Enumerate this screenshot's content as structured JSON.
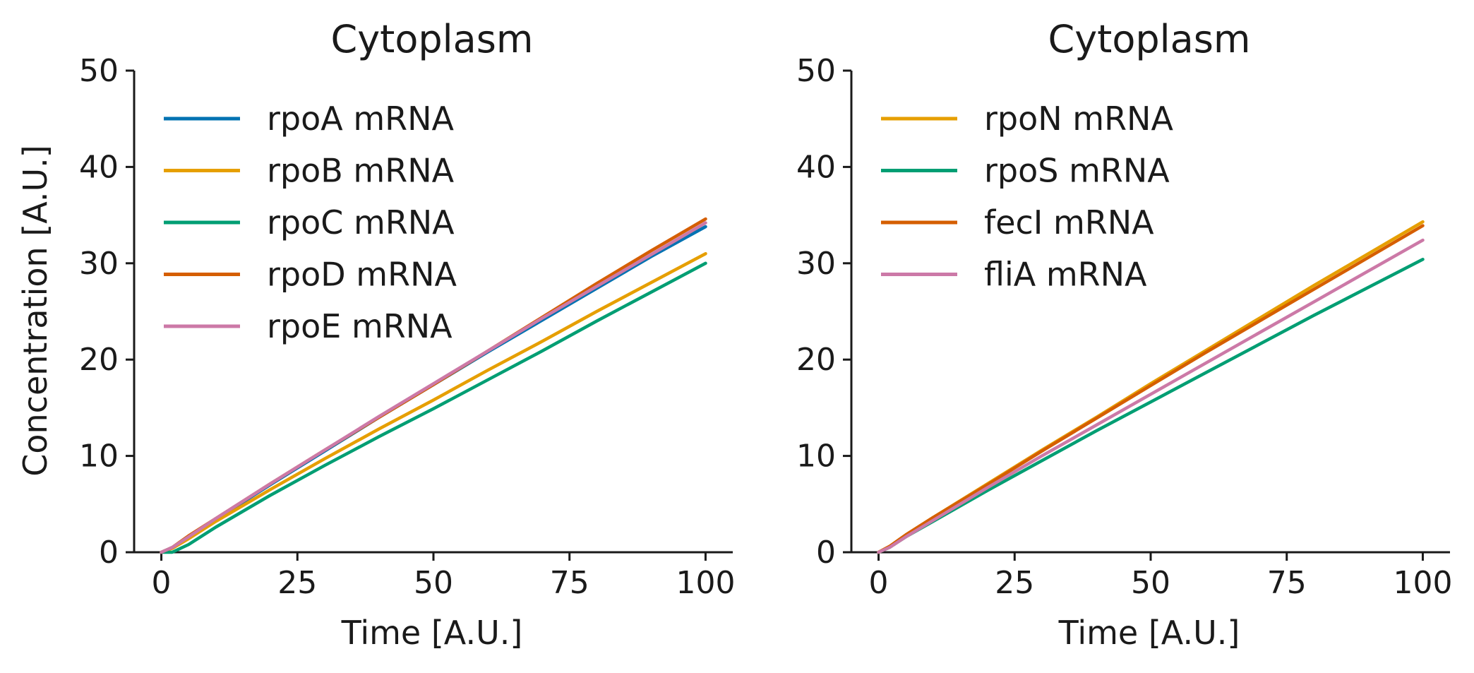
{
  "chart_data": [
    {
      "type": "line",
      "title": "Cytoplasm",
      "xlabel": "Time [A.U.]",
      "ylabel": "Concentration [A.U.]",
      "xlim": [
        -5,
        105
      ],
      "ylim": [
        0,
        50
      ],
      "xticks": [
        0,
        25,
        50,
        75,
        100
      ],
      "yticks": [
        0,
        10,
        20,
        30,
        40,
        50
      ],
      "xtick_labels": [
        "0",
        "25",
        "50",
        "75",
        "100"
      ],
      "ytick_labels": [
        "0",
        "10",
        "20",
        "30",
        "40",
        "50"
      ],
      "legend": "top-left",
      "grid": false,
      "series": [
        {
          "name": "rpoA mRNA",
          "color": "#0072B2",
          "x": [
            0,
            2,
            5,
            10,
            20,
            30,
            40,
            50,
            60,
            70,
            80,
            90,
            100
          ],
          "y": [
            0,
            0.5,
            1.6,
            3.4,
            7.0,
            10.5,
            14.0,
            17.4,
            20.8,
            24.1,
            27.4,
            30.7,
            33.8
          ]
        },
        {
          "name": "rpoB mRNA",
          "color": "#E69F00",
          "x": [
            0,
            2,
            5,
            10,
            20,
            30,
            40,
            50,
            60,
            70,
            80,
            90,
            100
          ],
          "y": [
            0,
            0.4,
            1.4,
            3.2,
            6.5,
            9.7,
            12.8,
            15.8,
            18.9,
            21.9,
            25.0,
            28.0,
            31.0
          ]
        },
        {
          "name": "rpoC mRNA",
          "color": "#009E73",
          "x": [
            0,
            2,
            5,
            10,
            20,
            30,
            40,
            50,
            60,
            70,
            80,
            90,
            100
          ],
          "y": [
            0,
            0,
            0.8,
            2.6,
            5.9,
            9.0,
            12.0,
            14.9,
            17.9,
            20.9,
            24.0,
            27.0,
            30.0
          ]
        },
        {
          "name": "rpoD mRNA",
          "color": "#D55E00",
          "x": [
            0,
            2,
            5,
            10,
            20,
            30,
            40,
            50,
            60,
            70,
            80,
            90,
            100
          ],
          "y": [
            0,
            0.5,
            1.7,
            3.5,
            7.1,
            10.6,
            14.0,
            17.4,
            20.9,
            24.4,
            27.9,
            31.3,
            34.6
          ]
        },
        {
          "name": "rpoE mRNA",
          "color": "#CC79A7",
          "x": [
            0,
            2,
            5,
            10,
            20,
            30,
            40,
            50,
            60,
            70,
            80,
            90,
            100
          ],
          "y": [
            0,
            0.5,
            1.6,
            3.5,
            7.1,
            10.6,
            14.1,
            17.5,
            20.9,
            24.3,
            27.6,
            30.9,
            34.2
          ]
        }
      ]
    },
    {
      "type": "line",
      "title": "Cytoplasm",
      "xlabel": "Time [A.U.]",
      "ylabel": "",
      "xlim": [
        -5,
        105
      ],
      "ylim": [
        0,
        50
      ],
      "xticks": [
        0,
        25,
        50,
        75,
        100
      ],
      "yticks": [
        0,
        10,
        20,
        30,
        40,
        50
      ],
      "xtick_labels": [
        "0",
        "25",
        "50",
        "75",
        "100"
      ],
      "ytick_labels": [
        "0",
        "10",
        "20",
        "30",
        "40",
        "50"
      ],
      "legend": "top-left",
      "grid": false,
      "series": [
        {
          "name": "rpoN mRNA",
          "color": "#E69F00",
          "x": [
            0,
            2,
            5,
            10,
            20,
            30,
            40,
            50,
            60,
            70,
            80,
            90,
            100
          ],
          "y": [
            0,
            0.6,
            1.8,
            3.6,
            7.1,
            10.6,
            14.0,
            17.5,
            20.9,
            24.3,
            27.7,
            31.0,
            34.3
          ]
        },
        {
          "name": "rpoS mRNA",
          "color": "#009E73",
          "x": [
            0,
            2,
            5,
            10,
            20,
            30,
            40,
            50,
            60,
            70,
            80,
            90,
            100
          ],
          "y": [
            0,
            0.5,
            1.6,
            3.2,
            6.4,
            9.5,
            12.6,
            15.6,
            18.6,
            21.6,
            24.6,
            27.5,
            30.4
          ]
        },
        {
          "name": "fecI mRNA",
          "color": "#D55E00",
          "x": [
            0,
            2,
            5,
            10,
            20,
            30,
            40,
            50,
            60,
            70,
            80,
            90,
            100
          ],
          "y": [
            0,
            0.6,
            1.8,
            3.6,
            7.0,
            10.5,
            13.9,
            17.3,
            20.7,
            24.0,
            27.3,
            30.6,
            33.9
          ]
        },
        {
          "name": "fliA mRNA",
          "color": "#CC79A7",
          "x": [
            0,
            2,
            5,
            10,
            20,
            30,
            40,
            50,
            60,
            70,
            80,
            90,
            100
          ],
          "y": [
            0,
            0.5,
            1.6,
            3.3,
            6.7,
            10.0,
            13.2,
            16.4,
            19.6,
            22.8,
            26.0,
            29.2,
            32.4
          ]
        }
      ]
    }
  ]
}
